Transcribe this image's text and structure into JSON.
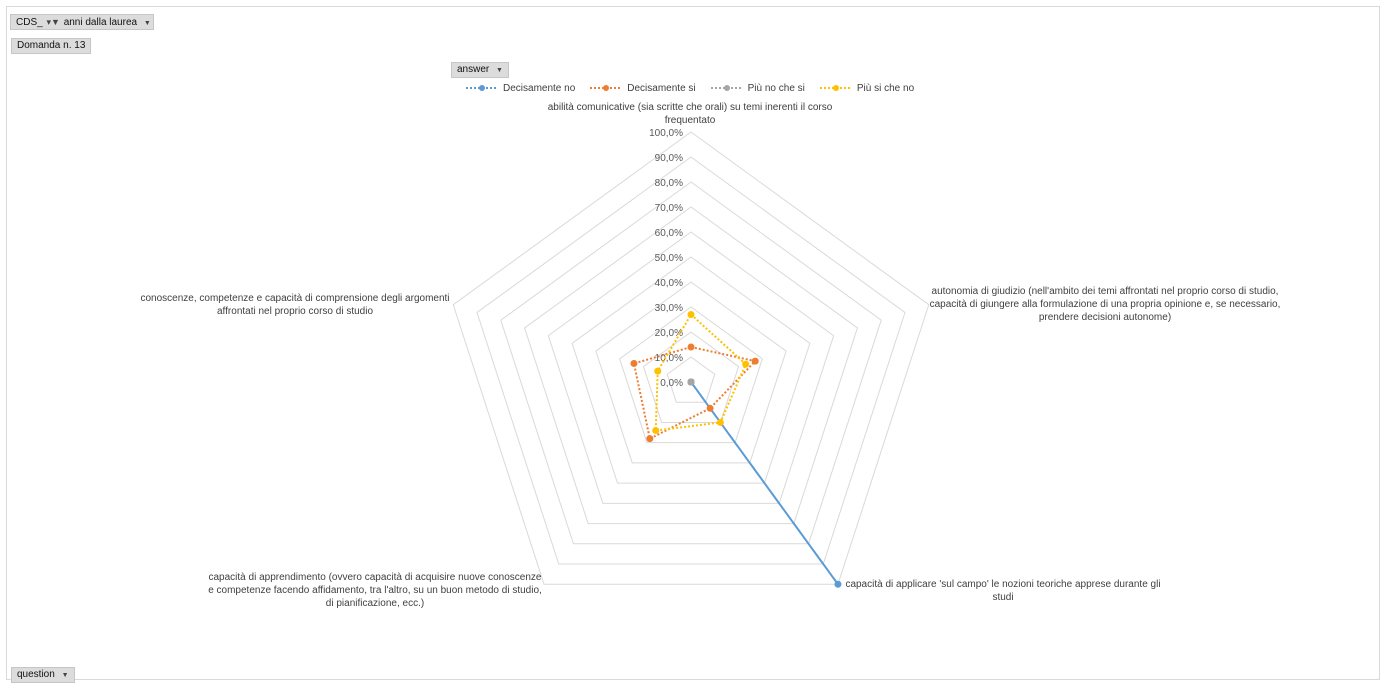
{
  "controls": {
    "cds_label": "CDS_",
    "anni_label": "anni dalla laurea",
    "domanda_label": "Domanda n. 13",
    "answer_label": "answer",
    "question_label": "question"
  },
  "colors": {
    "decisamente_no": "#5b9bd5",
    "decisamente_si": "#ed7d31",
    "piu_no_che_si": "#a5a5a5",
    "piu_si_che_no": "#ffc000",
    "grid": "#d9d9d9"
  },
  "chart_data": {
    "type": "radar",
    "axes": [
      "abilità comunicative (sia scritte che orali) su temi inerenti il corso frequentato",
      "autonomia di giudizio (nell'ambito dei temi affrontati nel proprio corso di studio, capacità di giungere alla formulazione di una propria opinione e, se necessario, prendere decisioni autonome)",
      "capacità di applicare 'sul campo' le nozioni teoriche apprese durante gli studi",
      "capacità di apprendimento (ovvero capacità di acquisire nuove conoscenze e competenze facendo affidamento, tra l'altro, su un buon metodo di studio, di pianificazione, ecc.)",
      "conoscenze, competenze e capacità di comprensione degli argomenti affrontati nel proprio corso di studio"
    ],
    "ticks": [
      "0,0%",
      "10,0%",
      "20,0%",
      "30,0%",
      "40,0%",
      "50,0%",
      "60,0%",
      "70,0%",
      "80,0%",
      "90,0%",
      "100,0%"
    ],
    "range": [
      0,
      100
    ],
    "legend_position": "top",
    "series": [
      {
        "name": "Decisamente no",
        "values": [
          0,
          0,
          100,
          0,
          0
        ]
      },
      {
        "name": "Decisamente si",
        "values": [
          14,
          27,
          13,
          28,
          24
        ]
      },
      {
        "name": "Più no che si",
        "values": [
          0,
          0,
          0,
          0,
          0
        ]
      },
      {
        "name": "Più si che no",
        "values": [
          27,
          23,
          20,
          24,
          14
        ]
      }
    ]
  }
}
